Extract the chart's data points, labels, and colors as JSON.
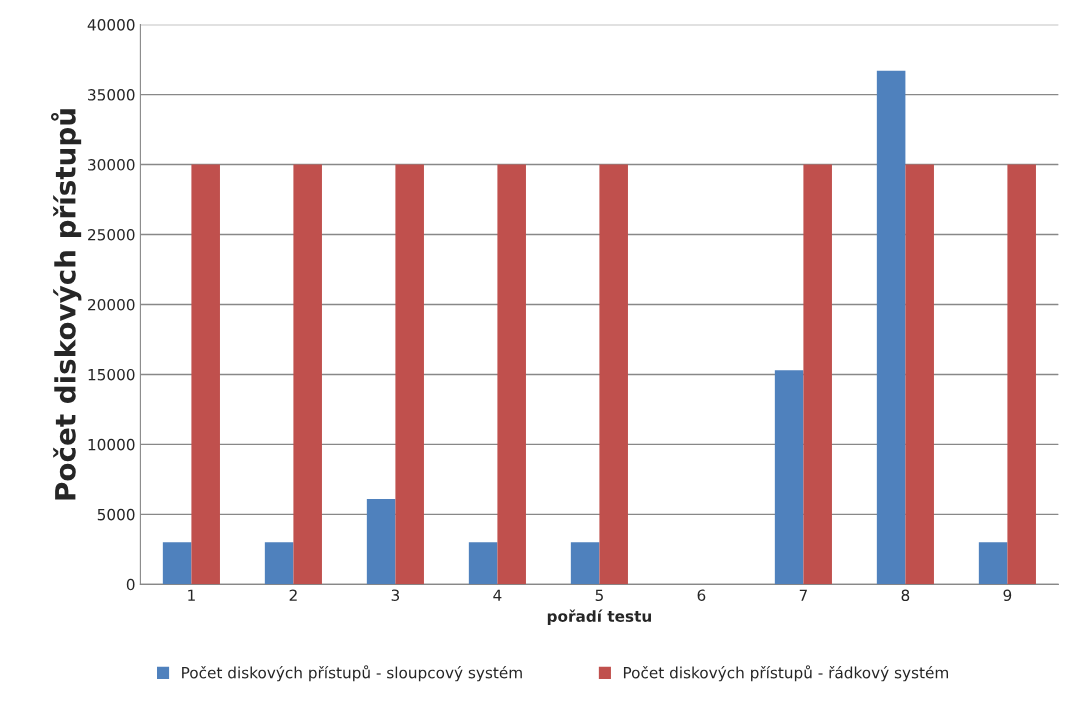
{
  "chart_data": {
    "type": "bar",
    "xlabel": "pořadí testu",
    "ylabel": "Počet diskových přístupů",
    "categories": [
      "1",
      "2",
      "3",
      "4",
      "5",
      "6",
      "7",
      "8",
      "9"
    ],
    "series": [
      {
        "name": "Počet diskových přístupů - sloupcový systém",
        "color": "#4f81bd",
        "values": [
          3000,
          3000,
          6100,
          3000,
          3000,
          null,
          15300,
          36700,
          3000
        ]
      },
      {
        "name": "Počet diskových přístupů - řádkový systém",
        "color": "#c0504d",
        "values": [
          30000,
          30000,
          30000,
          30000,
          30000,
          null,
          30000,
          30000,
          30000
        ]
      }
    ],
    "ylim": [
      0,
      40000
    ],
    "yticks": [
      0,
      5000,
      10000,
      15000,
      20000,
      25000,
      30000,
      35000,
      40000
    ],
    "grid": "y",
    "legend": "bottom"
  }
}
